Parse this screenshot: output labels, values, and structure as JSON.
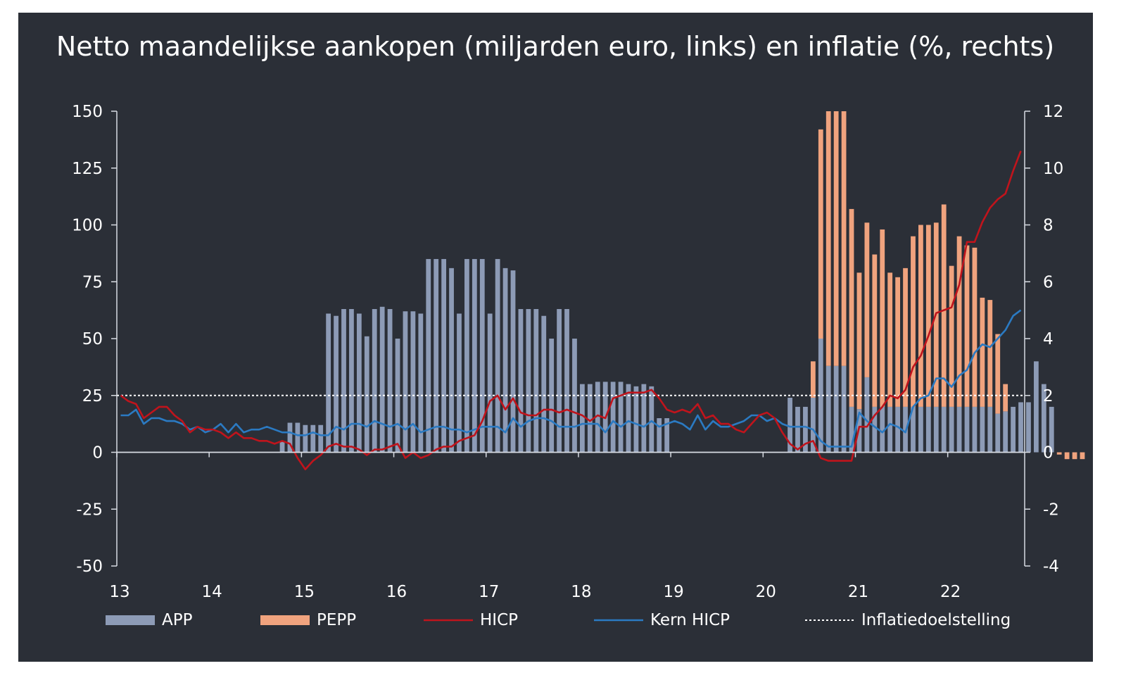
{
  "chart_data": {
    "type": "bar+line",
    "title": "Netto maandelijkse aankopen (miljarden euro, links) en inflatie (%, rechts)",
    "y_left": {
      "min": -50,
      "max": 150,
      "ticks": [
        150,
        125,
        100,
        75,
        50,
        25,
        0,
        -25,
        -50
      ]
    },
    "y_right": {
      "min": -4,
      "max": 12,
      "ticks": [
        12,
        10,
        8,
        6,
        4,
        2,
        0,
        -2,
        -4
      ]
    },
    "x_start": "2013-01",
    "x_labels": [
      "13",
      "14",
      "15",
      "16",
      "17",
      "18",
      "19",
      "20",
      "21",
      "22"
    ],
    "colors": {
      "APP": "#8d9bb6",
      "PEPP": "#f0a37e",
      "HICP": "#c0141c",
      "Kern HICP": "#2b7ac2",
      "target": "#ffffff"
    },
    "legend": [
      "APP",
      "PEPP",
      "HICP",
      "Kern HICP",
      "Inflatiedoelstelling"
    ],
    "inflation_target": 2,
    "series": [
      {
        "name": "APP",
        "kind": "bar",
        "axis": "left",
        "values": [
          0,
          0,
          0,
          0,
          0,
          0,
          0,
          0,
          0,
          0,
          0,
          0,
          0,
          0,
          0,
          0,
          0,
          0,
          0,
          0,
          0,
          5,
          13,
          13,
          12,
          12,
          12,
          61,
          60,
          63,
          63,
          61,
          51,
          63,
          64,
          63,
          50,
          62,
          62,
          61,
          85,
          85,
          85,
          81,
          61,
          85,
          85,
          85,
          61,
          85,
          81,
          80,
          63,
          63,
          63,
          60,
          50,
          63,
          63,
          50,
          30,
          30,
          31,
          31,
          31,
          31,
          30,
          29,
          30,
          29,
          15,
          15,
          0,
          0,
          0,
          0,
          0,
          0,
          0,
          0,
          0,
          0,
          0,
          0,
          0,
          0,
          0,
          24,
          20,
          20,
          24,
          50,
          38,
          38,
          38,
          20,
          19,
          33,
          20,
          20,
          20,
          20,
          20,
          20,
          20,
          20,
          20,
          20,
          20,
          20,
          20,
          20,
          20,
          20,
          17,
          18,
          20,
          22,
          22,
          40,
          30,
          20,
          0,
          0,
          0,
          0
        ]
      },
      {
        "name": "PEPP",
        "kind": "bar",
        "axis": "left",
        "values": [
          0,
          0,
          0,
          0,
          0,
          0,
          0,
          0,
          0,
          0,
          0,
          0,
          0,
          0,
          0,
          0,
          0,
          0,
          0,
          0,
          0,
          0,
          0,
          0,
          0,
          0,
          0,
          0,
          0,
          0,
          0,
          0,
          0,
          0,
          0,
          0,
          0,
          0,
          0,
          0,
          0,
          0,
          0,
          0,
          0,
          0,
          0,
          0,
          0,
          0,
          0,
          0,
          0,
          0,
          0,
          0,
          0,
          0,
          0,
          0,
          0,
          0,
          0,
          0,
          0,
          0,
          0,
          0,
          0,
          0,
          0,
          0,
          0,
          0,
          0,
          0,
          0,
          0,
          0,
          0,
          0,
          0,
          0,
          0,
          0,
          0,
          0,
          0,
          0,
          0,
          16,
          92,
          112,
          112,
          112,
          87,
          60,
          68,
          67,
          78,
          59,
          57,
          61,
          75,
          80,
          80,
          81,
          89,
          62,
          75,
          71,
          70,
          48,
          47,
          35,
          12,
          0,
          0,
          0,
          0,
          0,
          0,
          -1,
          -3,
          -3,
          -3
        ]
      },
      {
        "name": "HICP",
        "kind": "line",
        "axis": "right",
        "values": [
          2.0,
          1.8,
          1.7,
          1.2,
          1.4,
          1.6,
          1.6,
          1.3,
          1.1,
          0.7,
          0.9,
          0.8,
          0.8,
          0.7,
          0.5,
          0.7,
          0.5,
          0.5,
          0.4,
          0.4,
          0.3,
          0.4,
          0.3,
          -0.2,
          -0.6,
          -0.3,
          -0.1,
          0.2,
          0.3,
          0.2,
          0.2,
          0.1,
          -0.1,
          0.1,
          0.1,
          0.2,
          0.3,
          -0.2,
          0.0,
          -0.2,
          -0.1,
          0.1,
          0.2,
          0.2,
          0.4,
          0.5,
          0.6,
          1.1,
          1.8,
          2.0,
          1.5,
          1.9,
          1.4,
          1.3,
          1.3,
          1.5,
          1.5,
          1.4,
          1.5,
          1.4,
          1.3,
          1.1,
          1.3,
          1.2,
          1.9,
          2.0,
          2.1,
          2.1,
          2.1,
          2.2,
          1.9,
          1.5,
          1.4,
          1.5,
          1.4,
          1.7,
          1.2,
          1.3,
          1.0,
          1.0,
          0.8,
          0.7,
          1.0,
          1.3,
          1.4,
          1.2,
          0.7,
          0.3,
          0.1,
          0.3,
          0.4,
          -0.2,
          -0.3,
          -0.3,
          -0.3,
          -0.3,
          0.9,
          0.9,
          1.3,
          1.6,
          2.0,
          1.9,
          2.2,
          3.0,
          3.4,
          4.1,
          4.9,
          5.0,
          5.1,
          5.9,
          7.4,
          7.4,
          8.1,
          8.6,
          8.9,
          9.1,
          9.9,
          10.6
        ],
        "x_offset": 0
      },
      {
        "name": "Kern HICP",
        "kind": "line",
        "axis": "right",
        "values": [
          1.3,
          1.3,
          1.5,
          1.0,
          1.2,
          1.2,
          1.1,
          1.1,
          1.0,
          0.8,
          0.9,
          0.7,
          0.8,
          1.0,
          0.7,
          1.0,
          0.7,
          0.8,
          0.8,
          0.9,
          0.8,
          0.7,
          0.7,
          0.6,
          0.6,
          0.7,
          0.6,
          0.6,
          0.9,
          0.8,
          1.0,
          1.0,
          0.9,
          1.1,
          1.0,
          0.9,
          1.0,
          0.8,
          1.0,
          0.7,
          0.8,
          0.9,
          0.9,
          0.8,
          0.8,
          0.7,
          0.8,
          0.9,
          0.9,
          0.9,
          0.7,
          1.2,
          0.9,
          1.1,
          1.2,
          1.2,
          1.1,
          0.9,
          0.9,
          0.9,
          1.0,
          1.0,
          1.0,
          0.7,
          1.1,
          0.9,
          1.1,
          1.0,
          0.9,
          1.1,
          0.9,
          1.0,
          1.1,
          1.0,
          0.8,
          1.3,
          0.8,
          1.1,
          0.9,
          0.9,
          1.0,
          1.1,
          1.3,
          1.3,
          1.1,
          1.2,
          1.0,
          0.9,
          0.9,
          0.9,
          0.8,
          0.4,
          0.2,
          0.2,
          0.2,
          0.2,
          1.4,
          1.1,
          0.9,
          0.7,
          1.0,
          0.9,
          0.7,
          1.6,
          1.9,
          2.0,
          2.6,
          2.6,
          2.3,
          2.7,
          2.9,
          3.5,
          3.8,
          3.7,
          4.0,
          4.3,
          4.8,
          5.0
        ]
      }
    ]
  }
}
